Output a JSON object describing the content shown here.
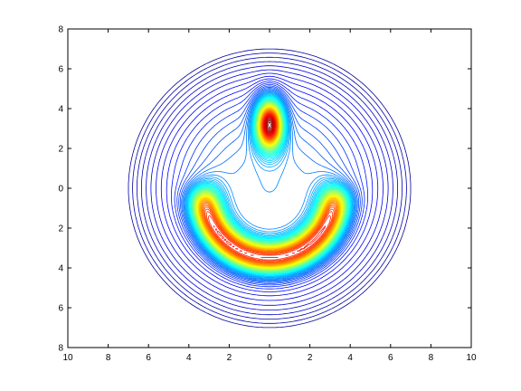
{
  "chart_data": {
    "type": "contour",
    "title": "",
    "xlabel": "",
    "ylabel": "",
    "xlim": [
      -10,
      10
    ],
    "ylim": [
      -8,
      8
    ],
    "x_ticks": [
      -10,
      -8,
      -6,
      -4,
      -2,
      0,
      2,
      4,
      6,
      8,
      10
    ],
    "y_ticks": [
      -8,
      -6,
      -4,
      -2,
      0,
      2,
      4,
      6,
      8
    ],
    "x_tick_labels": [
      "10",
      "8",
      "6",
      "4",
      "2",
      "0",
      "2",
      "4",
      "6",
      "8",
      "10"
    ],
    "y_tick_labels": [
      "8",
      "6",
      "4",
      "2",
      "0",
      "2",
      "4",
      "6",
      "8"
    ],
    "grid": false,
    "colormap": "jet",
    "colormap_stops": [
      "#00008f",
      "#0000ff",
      "#0080ff",
      "#00ffff",
      "#80ff80",
      "#ffff00",
      "#ff8000",
      "#ff0000",
      "#800000"
    ],
    "features": [
      {
        "kind": "peak",
        "x": 0,
        "y": 3.2,
        "sx": 0.45,
        "sy": 0.85
      },
      {
        "kind": "ridge_arc",
        "center_x": 0,
        "center_y": -0.3,
        "radius": 3.2,
        "thickness": 0.55
      }
    ],
    "outer_boundary_radius": 7.2,
    "contour_levels": 70
  }
}
